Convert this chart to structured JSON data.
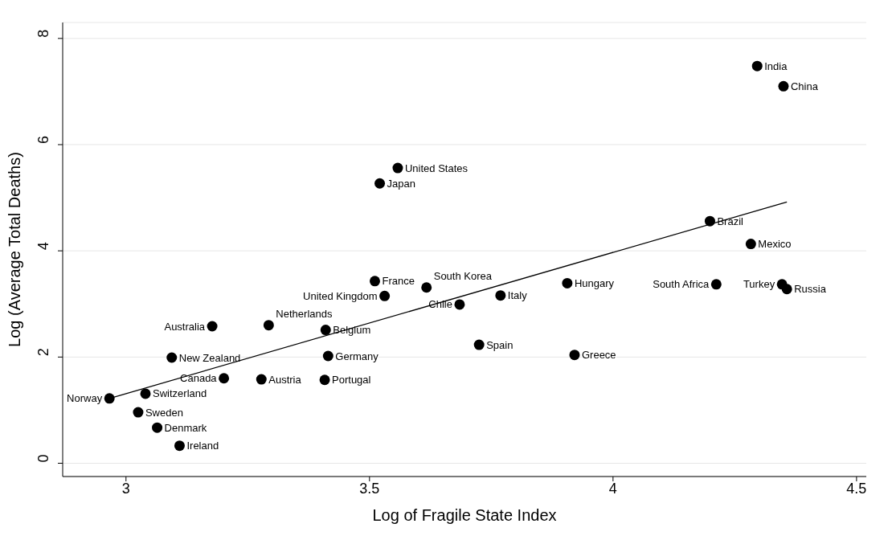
{
  "chart_data": {
    "type": "scatter",
    "xlabel": "Log of Fragile State Index",
    "ylabel": "Log (Average Total Deaths)",
    "xlim": [
      2.87,
      4.52
    ],
    "ylim": [
      -0.25,
      8.3
    ],
    "xticks": [
      3,
      3.5,
      4,
      4.5
    ],
    "yticks": [
      0,
      2,
      4,
      6,
      8
    ],
    "grid": "y",
    "legend": false,
    "marker": "circle",
    "series": [
      {
        "type": "scatter",
        "color": "#000000",
        "x": [
          4.296,
          4.35,
          3.558,
          3.521,
          4.199,
          4.283,
          4.212,
          4.347,
          4.357,
          3.906,
          3.511,
          3.617,
          3.531,
          3.769,
          3.685,
          3.725,
          3.921,
          3.177,
          3.293,
          3.41,
          3.094,
          3.415,
          3.201,
          3.278,
          3.408,
          2.966,
          3.04,
          3.025,
          3.064,
          3.11
        ],
        "values": [
          7.48,
          7.1,
          5.56,
          5.27,
          4.56,
          4.13,
          3.37,
          3.37,
          3.28,
          3.39,
          3.43,
          3.31,
          3.15,
          3.16,
          2.99,
          2.23,
          2.04,
          2.58,
          2.6,
          2.51,
          1.99,
          2.02,
          1.6,
          1.58,
          1.57,
          1.22,
          1.31,
          0.96,
          0.67,
          0.33
        ]
      },
      {
        "type": "line",
        "color": "#000000",
        "line_style": "solid",
        "marker": "none",
        "x": [
          2.966,
          4.357
        ],
        "values": [
          1.22,
          4.92
        ]
      }
    ],
    "annotations": [
      {
        "text": "India",
        "x": 4.296,
        "y": 7.48
      },
      {
        "text": "China",
        "x": 4.35,
        "y": 7.1
      },
      {
        "text": "United States",
        "x": 3.558,
        "y": 5.56
      },
      {
        "text": "Japan",
        "x": 3.521,
        "y": 5.27
      },
      {
        "text": "Brazil",
        "x": 4.199,
        "y": 4.56
      },
      {
        "text": "Mexico",
        "x": 4.283,
        "y": 4.13
      },
      {
        "text": "South Africa",
        "x": 4.212,
        "y": 3.37
      },
      {
        "text": "Turkey",
        "x": 4.347,
        "y": 3.37
      },
      {
        "text": "Russia",
        "x": 4.357,
        "y": 3.28
      },
      {
        "text": "Hungary",
        "x": 3.906,
        "y": 3.39
      },
      {
        "text": "France",
        "x": 3.511,
        "y": 3.43
      },
      {
        "text": "South Korea",
        "x": 3.617,
        "y": 3.31
      },
      {
        "text": "United Kingdom",
        "x": 3.531,
        "y": 3.15
      },
      {
        "text": "Italy",
        "x": 3.769,
        "y": 3.16
      },
      {
        "text": "Chile",
        "x": 3.685,
        "y": 2.99
      },
      {
        "text": "Spain",
        "x": 3.725,
        "y": 2.23
      },
      {
        "text": "Greece",
        "x": 3.921,
        "y": 2.04
      },
      {
        "text": "Australia",
        "x": 3.177,
        "y": 2.58
      },
      {
        "text": "Netherlands",
        "x": 3.293,
        "y": 2.6
      },
      {
        "text": "Belgium",
        "x": 3.41,
        "y": 2.51
      },
      {
        "text": "New Zealand",
        "x": 3.094,
        "y": 1.99
      },
      {
        "text": "Germany",
        "x": 3.415,
        "y": 2.02
      },
      {
        "text": "Canada",
        "x": 3.201,
        "y": 1.6
      },
      {
        "text": "Austria",
        "x": 3.278,
        "y": 1.58
      },
      {
        "text": "Portugal",
        "x": 3.408,
        "y": 1.57
      },
      {
        "text": "Norway",
        "x": 2.966,
        "y": 1.22
      },
      {
        "text": "Switzerland",
        "x": 3.04,
        "y": 1.31
      },
      {
        "text": "Sweden",
        "x": 3.025,
        "y": 0.96
      },
      {
        "text": "Denmark",
        "x": 3.064,
        "y": 0.67
      },
      {
        "text": "Ireland",
        "x": 3.11,
        "y": 0.33
      }
    ]
  }
}
